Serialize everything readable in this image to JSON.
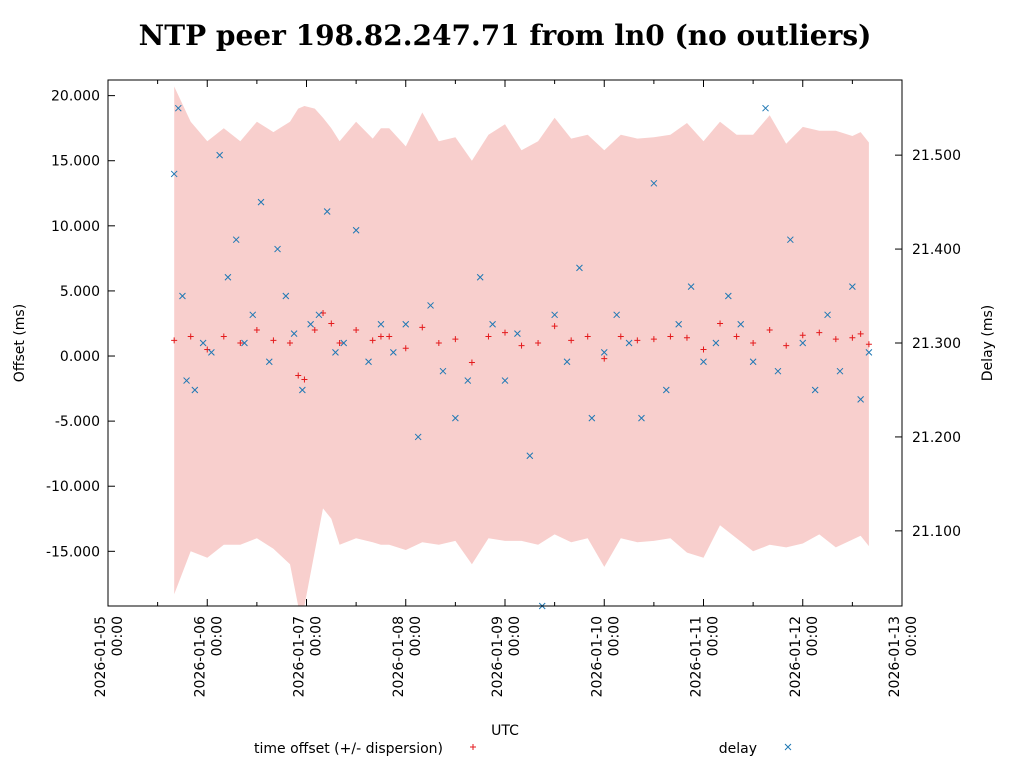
{
  "chart_data": {
    "type": "scatter",
    "title": "NTP peer 198.82.247.71 from ln0 (no outliers)",
    "xlabel": "UTC",
    "ylabel_left": "Offset (ms)",
    "ylabel_right": "Delay (ms)",
    "xlim": [
      "2026-01-05 00:00",
      "2026-01-13 00:00"
    ],
    "x_ticks": [
      {
        "date": "2026-01-05",
        "time": "00:00"
      },
      {
        "date": "2026-01-06",
        "time": "00:00"
      },
      {
        "date": "2026-01-07",
        "time": "00:00"
      },
      {
        "date": "2026-01-08",
        "time": "00:00"
      },
      {
        "date": "2026-01-09",
        "time": "00:00"
      },
      {
        "date": "2026-01-10",
        "time": "00:00"
      },
      {
        "date": "2026-01-11",
        "time": "00:00"
      },
      {
        "date": "2026-01-12",
        "time": "00:00"
      },
      {
        "date": "2026-01-13",
        "time": "00:00"
      }
    ],
    "ylim_left": [
      -19.2,
      21.2
    ],
    "y_ticks_left": [
      "20.000",
      "15.000",
      "10.000",
      "5.000",
      "0.000",
      "-5.000",
      "-10.000",
      "-15.000"
    ],
    "ylim_right": [
      21.02,
      21.58
    ],
    "y_ticks_right": [
      "21.500",
      "21.400",
      "21.300",
      "21.200",
      "21.100"
    ],
    "grid": false,
    "legend_position": "bottom",
    "colors": {
      "offset": "#e41a1c",
      "delay": "#1f78b4",
      "dispersion": "#f8cfcd"
    },
    "series": [
      {
        "name": "time offset (+/- dispersion)",
        "marker": "+",
        "x": [
          "2026-01-05 16:00",
          "2026-01-05 20:00",
          "2026-01-06 00:00",
          "2026-01-06 04:00",
          "2026-01-06 08:00",
          "2026-01-06 12:00",
          "2026-01-06 16:00",
          "2026-01-06 20:00",
          "2026-01-06 22:00",
          "2026-01-06 23:30",
          "2026-01-07 02:00",
          "2026-01-07 04:00",
          "2026-01-07 06:00",
          "2026-01-07 08:00",
          "2026-01-07 12:00",
          "2026-01-07 16:00",
          "2026-01-07 18:00",
          "2026-01-07 20:00",
          "2026-01-08 00:00",
          "2026-01-08 04:00",
          "2026-01-08 08:00",
          "2026-01-08 12:00",
          "2026-01-08 16:00",
          "2026-01-08 20:00",
          "2026-01-09 00:00",
          "2026-01-09 04:00",
          "2026-01-09 08:00",
          "2026-01-09 12:00",
          "2026-01-09 16:00",
          "2026-01-09 20:00",
          "2026-01-10 00:00",
          "2026-01-10 04:00",
          "2026-01-10 08:00",
          "2026-01-10 12:00",
          "2026-01-10 16:00",
          "2026-01-10 20:00",
          "2026-01-11 00:00",
          "2026-01-11 04:00",
          "2026-01-11 08:00",
          "2026-01-11 12:00",
          "2026-01-11 16:00",
          "2026-01-11 20:00",
          "2026-01-12 00:00",
          "2026-01-12 04:00",
          "2026-01-12 08:00",
          "2026-01-12 12:00",
          "2026-01-12 14:00",
          "2026-01-12 16:00"
        ],
        "offset": [
          1.2,
          1.5,
          0.5,
          1.5,
          1.0,
          2.0,
          1.2,
          1.0,
          -1.5,
          -1.8,
          2.0,
          3.3,
          2.5,
          1.0,
          2.0,
          1.2,
          1.5,
          1.5,
          0.6,
          2.2,
          1.0,
          1.3,
          -0.5,
          1.5,
          1.8,
          0.8,
          1.0,
          2.3,
          1.2,
          1.5,
          -0.2,
          1.5,
          1.2,
          1.3,
          1.5,
          1.4,
          0.5,
          2.5,
          1.5,
          1.0,
          2.0,
          0.8,
          1.6,
          1.8,
          1.3,
          1.4,
          1.7,
          0.9
        ],
        "dispersion": [
          19.5,
          16.5,
          16.0,
          16.0,
          15.5,
          16.0,
          16.0,
          17.0,
          20.5,
          21.0,
          17.0,
          15.0,
          15.0,
          15.5,
          16.0,
          15.5,
          16.0,
          16.0,
          15.5,
          16.5,
          15.5,
          15.5,
          15.5,
          15.5,
          16.0,
          15.0,
          15.5,
          16.0,
          15.5,
          15.5,
          16.0,
          15.5,
          15.5,
          15.5,
          15.5,
          16.5,
          16.0,
          15.5,
          15.5,
          16.0,
          16.5,
          15.5,
          16.0,
          15.5,
          16.0,
          15.5,
          15.5,
          15.5
        ]
      },
      {
        "name": "delay",
        "marker": "x",
        "axis": "right",
        "x": [
          "2026-01-05 16:00",
          "2026-01-05 17:00",
          "2026-01-05 18:00",
          "2026-01-05 19:00",
          "2026-01-05 21:00",
          "2026-01-05 23:00",
          "2026-01-06 01:00",
          "2026-01-06 03:00",
          "2026-01-06 05:00",
          "2026-01-06 07:00",
          "2026-01-06 09:00",
          "2026-01-06 11:00",
          "2026-01-06 13:00",
          "2026-01-06 15:00",
          "2026-01-06 17:00",
          "2026-01-06 19:00",
          "2026-01-06 21:00",
          "2026-01-06 23:00",
          "2026-01-07 01:00",
          "2026-01-07 03:00",
          "2026-01-07 05:00",
          "2026-01-07 07:00",
          "2026-01-07 09:00",
          "2026-01-07 12:00",
          "2026-01-07 15:00",
          "2026-01-07 18:00",
          "2026-01-07 21:00",
          "2026-01-08 00:00",
          "2026-01-08 03:00",
          "2026-01-08 06:00",
          "2026-01-08 09:00",
          "2026-01-08 12:00",
          "2026-01-08 15:00",
          "2026-01-08 18:00",
          "2026-01-08 21:00",
          "2026-01-09 00:00",
          "2026-01-09 03:00",
          "2026-01-09 06:00",
          "2026-01-09 09:00",
          "2026-01-09 12:00",
          "2026-01-09 15:00",
          "2026-01-09 18:00",
          "2026-01-09 21:00",
          "2026-01-10 00:00",
          "2026-01-10 03:00",
          "2026-01-10 06:00",
          "2026-01-10 09:00",
          "2026-01-10 12:00",
          "2026-01-10 15:00",
          "2026-01-10 18:00",
          "2026-01-10 21:00",
          "2026-01-11 00:00",
          "2026-01-11 03:00",
          "2026-01-11 06:00",
          "2026-01-11 09:00",
          "2026-01-11 12:00",
          "2026-01-11 15:00",
          "2026-01-11 18:00",
          "2026-01-11 21:00",
          "2026-01-12 00:00",
          "2026-01-12 03:00",
          "2026-01-12 06:00",
          "2026-01-12 09:00",
          "2026-01-12 12:00",
          "2026-01-12 14:00",
          "2026-01-12 16:00"
        ],
        "delay": [
          21.48,
          21.55,
          21.35,
          21.26,
          21.25,
          21.3,
          21.29,
          21.5,
          21.37,
          21.41,
          21.3,
          21.33,
          21.45,
          21.28,
          21.4,
          21.35,
          21.31,
          21.25,
          21.32,
          21.33,
          21.44,
          21.29,
          21.3,
          21.42,
          21.28,
          21.32,
          21.29,
          21.32,
          21.2,
          21.34,
          21.27,
          21.22,
          21.26,
          21.37,
          21.32,
          21.26,
          21.31,
          21.18,
          21.02,
          21.33,
          21.28,
          21.38,
          21.22,
          21.29,
          21.33,
          21.3,
          21.22,
          21.47,
          21.25,
          21.32,
          21.36,
          21.28,
          21.3,
          21.35,
          21.32,
          21.28,
          21.55,
          21.27,
          21.41,
          21.3,
          21.25,
          21.33,
          21.27,
          21.36,
          21.24,
          21.29
        ]
      }
    ]
  }
}
